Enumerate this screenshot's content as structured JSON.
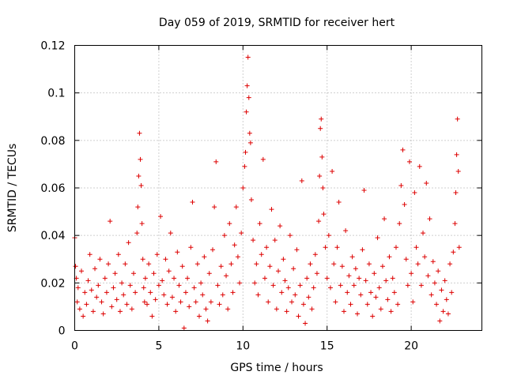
{
  "chart_data": {
    "type": "scatter",
    "title": "Day 059 of 2019, SRMTID for receiver hert",
    "xlabel": "GPS time / hours",
    "ylabel": "SRMTID / TECUs",
    "xlim": [
      0,
      24.2
    ],
    "ylim": [
      0,
      0.12
    ],
    "x_ticks": [
      0,
      5,
      10,
      15,
      20
    ],
    "y_ticks": [
      0,
      0.02,
      0.04,
      0.06,
      0.08,
      0.1,
      0.12
    ],
    "x_tick_labels": [
      "0",
      "5",
      "10",
      "15",
      "20"
    ],
    "y_tick_labels": [
      "0",
      "0.02",
      "0.04",
      "0.06",
      "0.08",
      "0.1",
      "0.12"
    ],
    "grid": true,
    "marker": "plus",
    "color": "#dd0000",
    "series": [
      {
        "name": "SRMTID",
        "x": [
          0.0,
          0.05,
          0.1,
          0.15,
          0.2,
          0.3,
          0.4,
          0.5,
          0.6,
          0.7,
          0.8,
          0.9,
          1.0,
          1.1,
          1.2,
          1.3,
          1.4,
          1.5,
          1.6,
          1.7,
          1.8,
          1.9,
          2.0,
          2.1,
          2.2,
          2.3,
          2.4,
          2.5,
          2.6,
          2.7,
          2.8,
          2.9,
          3.0,
          3.1,
          3.2,
          3.3,
          3.4,
          3.5,
          3.6,
          3.7,
          3.75,
          3.8,
          3.85,
          3.9,
          3.95,
          4.0,
          4.05,
          4.1,
          4.15,
          4.2,
          4.3,
          4.4,
          4.5,
          4.6,
          4.7,
          4.8,
          4.9,
          5.0,
          5.1,
          5.2,
          5.3,
          5.4,
          5.5,
          5.6,
          5.7,
          5.8,
          5.9,
          6.0,
          6.1,
          6.2,
          6.3,
          6.4,
          6.5,
          6.6,
          6.7,
          6.8,
          6.9,
          7.0,
          7.1,
          7.2,
          7.3,
          7.4,
          7.5,
          7.6,
          7.7,
          7.8,
          7.9,
          8.0,
          8.1,
          8.2,
          8.3,
          8.4,
          8.5,
          8.6,
          8.7,
          8.8,
          8.9,
          9.0,
          9.1,
          9.2,
          9.3,
          9.4,
          9.5,
          9.6,
          9.7,
          9.8,
          9.9,
          10.0,
          10.1,
          10.15,
          10.2,
          10.25,
          10.3,
          10.35,
          10.4,
          10.45,
          10.5,
          10.6,
          10.7,
          10.8,
          10.9,
          11.0,
          11.1,
          11.2,
          11.3,
          11.4,
          11.5,
          11.6,
          11.7,
          11.8,
          11.9,
          12.0,
          12.1,
          12.2,
          12.3,
          12.4,
          12.5,
          12.6,
          12.7,
          12.8,
          12.9,
          13.0,
          13.1,
          13.2,
          13.3,
          13.4,
          13.5,
          13.6,
          13.7,
          13.8,
          13.9,
          14.0,
          14.1,
          14.2,
          14.3,
          14.4,
          14.5,
          14.55,
          14.6,
          14.65,
          14.7,
          14.75,
          14.8,
          14.9,
          15.0,
          15.1,
          15.2,
          15.3,
          15.4,
          15.5,
          15.6,
          15.7,
          15.8,
          15.9,
          16.0,
          16.1,
          16.2,
          16.3,
          16.4,
          16.5,
          16.6,
          16.7,
          16.8,
          16.9,
          17.0,
          17.1,
          17.2,
          17.3,
          17.4,
          17.5,
          17.6,
          17.7,
          17.8,
          17.9,
          18.0,
          18.1,
          18.2,
          18.3,
          18.4,
          18.5,
          18.6,
          18.7,
          18.8,
          18.9,
          19.0,
          19.1,
          19.2,
          19.3,
          19.4,
          19.5,
          19.6,
          19.7,
          19.8,
          19.9,
          20.0,
          20.1,
          20.2,
          20.3,
          20.4,
          20.5,
          20.6,
          20.7,
          20.8,
          20.9,
          21.0,
          21.1,
          21.2,
          21.3,
          21.4,
          21.5,
          21.6,
          21.7,
          21.8,
          21.9,
          22.0,
          22.1,
          22.2,
          22.3,
          22.4,
          22.5,
          22.6,
          22.65,
          22.7,
          22.75,
          22.8,
          22.85
        ],
        "y": [
          0.039,
          0.027,
          0.022,
          0.012,
          0.018,
          0.009,
          0.025,
          0.006,
          0.016,
          0.011,
          0.021,
          0.032,
          0.017,
          0.008,
          0.026,
          0.014,
          0.019,
          0.03,
          0.012,
          0.007,
          0.022,
          0.016,
          0.028,
          0.046,
          0.01,
          0.018,
          0.024,
          0.013,
          0.032,
          0.008,
          0.02,
          0.015,
          0.028,
          0.011,
          0.037,
          0.019,
          0.009,
          0.024,
          0.016,
          0.041,
          0.052,
          0.065,
          0.083,
          0.072,
          0.061,
          0.045,
          0.03,
          0.018,
          0.012,
          0.022,
          0.011,
          0.028,
          0.016,
          0.006,
          0.024,
          0.013,
          0.032,
          0.019,
          0.048,
          0.021,
          0.015,
          0.03,
          0.011,
          0.025,
          0.041,
          0.014,
          0.022,
          0.008,
          0.033,
          0.019,
          0.012,
          0.027,
          0.001,
          0.016,
          0.022,
          0.01,
          0.035,
          0.054,
          0.018,
          0.012,
          0.028,
          0.006,
          0.02,
          0.015,
          0.031,
          0.009,
          0.004,
          0.024,
          0.012,
          0.034,
          0.052,
          0.071,
          0.019,
          0.011,
          0.027,
          0.015,
          0.04,
          0.023,
          0.009,
          0.045,
          0.028,
          0.016,
          0.036,
          0.052,
          0.031,
          0.02,
          0.041,
          0.06,
          0.069,
          0.075,
          0.092,
          0.103,
          0.115,
          0.098,
          0.083,
          0.079,
          0.055,
          0.038,
          0.02,
          0.028,
          0.015,
          0.045,
          0.032,
          0.072,
          0.022,
          0.035,
          0.012,
          0.027,
          0.051,
          0.019,
          0.038,
          0.009,
          0.025,
          0.044,
          0.016,
          0.03,
          0.021,
          0.008,
          0.018,
          0.04,
          0.012,
          0.026,
          0.015,
          0.034,
          0.006,
          0.019,
          0.063,
          0.011,
          0.003,
          0.022,
          0.014,
          0.028,
          0.009,
          0.018,
          0.032,
          0.024,
          0.046,
          0.065,
          0.085,
          0.089,
          0.073,
          0.06,
          0.049,
          0.035,
          0.022,
          0.04,
          0.018,
          0.067,
          0.028,
          0.012,
          0.035,
          0.054,
          0.019,
          0.027,
          0.008,
          0.042,
          0.016,
          0.023,
          0.011,
          0.031,
          0.019,
          0.026,
          0.007,
          0.022,
          0.015,
          0.034,
          0.059,
          0.021,
          0.011,
          0.028,
          0.016,
          0.006,
          0.024,
          0.014,
          0.039,
          0.018,
          0.009,
          0.027,
          0.047,
          0.021,
          0.013,
          0.031,
          0.008,
          0.022,
          0.016,
          0.035,
          0.011,
          0.045,
          0.061,
          0.076,
          0.053,
          0.03,
          0.019,
          0.071,
          0.024,
          0.012,
          0.058,
          0.035,
          0.028,
          0.069,
          0.019,
          0.041,
          0.031,
          0.062,
          0.023,
          0.047,
          0.015,
          0.029,
          0.02,
          0.011,
          0.025,
          0.004,
          0.017,
          0.008,
          0.021,
          0.013,
          0.007,
          0.028,
          0.016,
          0.033,
          0.045,
          0.058,
          0.074,
          0.089,
          0.067,
          0.035
        ]
      }
    ]
  }
}
